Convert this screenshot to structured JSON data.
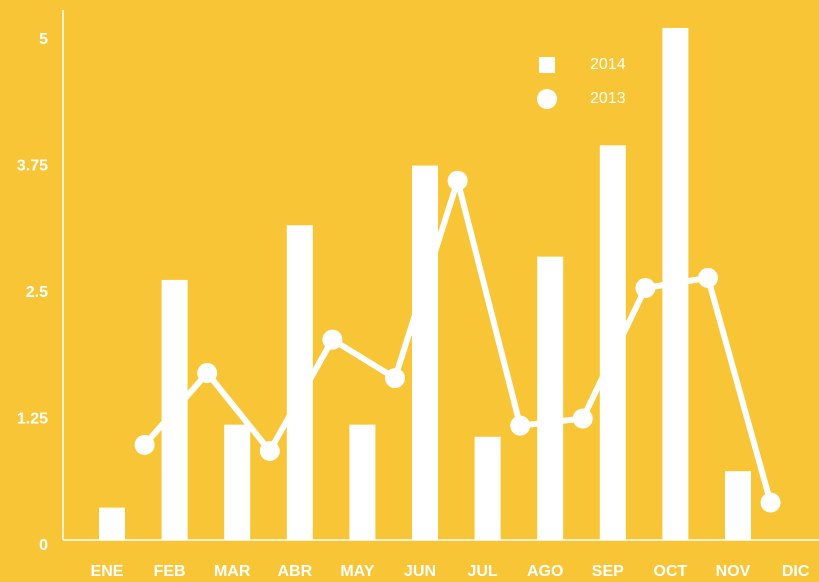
{
  "chart_data": {
    "type": "bar-line",
    "categories": [
      "ENE",
      "FEB",
      "MAR",
      "ABR",
      "MAY",
      "JUN",
      "JUL",
      "AGO",
      "SEP",
      "OCT",
      "NOV",
      "DIC"
    ],
    "series": [
      {
        "name": "2014",
        "color": "#ffffff",
        "type": "bar",
        "values": [
          0.32,
          2.57,
          1.14,
          3.11,
          1.14,
          3.7,
          1.02,
          2.8,
          3.9,
          5.06,
          0.68,
          null
        ]
      },
      {
        "name": "2013",
        "color": "#ffffff",
        "type": "line",
        "values": [
          null,
          0.94,
          1.65,
          0.88,
          1.98,
          1.6,
          3.55,
          1.13,
          1.2,
          2.49,
          2.59,
          0.37
        ]
      }
    ],
    "ylim": [
      0,
      5
    ],
    "yticks": [
      0,
      1.25,
      2.5,
      3.75,
      5
    ],
    "grid": false,
    "legend": "upper right",
    "background": "#f7c535"
  }
}
